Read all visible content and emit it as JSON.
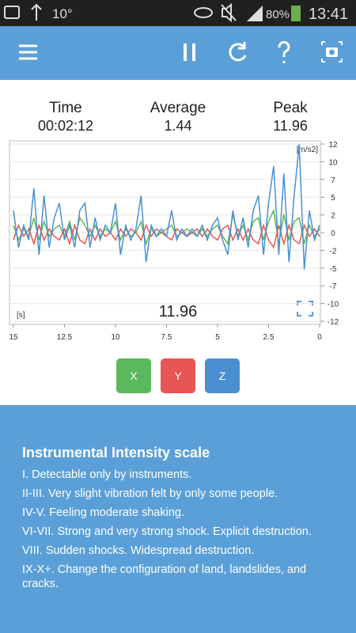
{
  "status_bar": {
    "temperature": "10°",
    "battery": "80%",
    "time": "13:41"
  },
  "stats": [
    {
      "label": "Time",
      "value": "00:02:12"
    },
    {
      "label": "Average",
      "value": 1.44
    },
    {
      "label": "Peak",
      "value": 11.96
    }
  ],
  "chart_data": {
    "type": "line",
    "y_unit": "[m/s2]",
    "x_unit": "[s]",
    "x": [
      15,
      14.75,
      14.5,
      14.25,
      14,
      13.75,
      13.5,
      13.25,
      13,
      12.75,
      12.5,
      12.25,
      12,
      11.75,
      11.5,
      11.25,
      11,
      10.75,
      10.5,
      10.25,
      10,
      9.75,
      9.5,
      9.25,
      9,
      8.75,
      8.5,
      8.25,
      8,
      7.75,
      7.5,
      7.25,
      7,
      6.75,
      6.5,
      6.25,
      6,
      5.75,
      5.5,
      5.25,
      5,
      4.75,
      4.5,
      4.25,
      4,
      3.75,
      3.5,
      3.25,
      3,
      2.75,
      2.5,
      2.25,
      2,
      1.75,
      1.5,
      1.25,
      1,
      0.75,
      0.5,
      0.25,
      0
    ],
    "series": [
      {
        "name": "X",
        "color": "#5cb85c",
        "values": [
          1,
          -1,
          0.5,
          -0.5,
          2,
          -1,
          1.5,
          -0.5,
          0.5,
          1,
          -0.5,
          1.5,
          -1,
          2,
          1,
          -0.5,
          1,
          -0.5,
          0.5,
          0,
          1.5,
          -1,
          0.5,
          -0.5,
          0,
          1.5,
          -1.5,
          0.5,
          -0.5,
          0,
          0.5,
          1,
          -0.5,
          0,
          0.5,
          0,
          -0.5,
          0.5,
          -0.5,
          0.5,
          1,
          -0.5,
          -1.5,
          2.5,
          -0.5,
          1,
          -1,
          1.5,
          2,
          -1,
          1.5,
          3,
          -1.5,
          2.5,
          -1,
          1.5,
          2,
          -1.5,
          1,
          -0.5,
          0.5
        ]
      },
      {
        "name": "Y",
        "color": "#e85555",
        "values": [
          -1,
          1,
          -0.5,
          0.5,
          -1.5,
          1,
          -1,
          0.5,
          -0.5,
          -1,
          0.5,
          -1.5,
          1,
          -1,
          -1.5,
          0.5,
          -1,
          0.5,
          -0.5,
          0,
          -1,
          0.5,
          -0.5,
          0.5,
          0,
          -1,
          1,
          -0.5,
          0.5,
          0,
          -0.5,
          -1,
          0.5,
          0,
          -0.5,
          0,
          0.5,
          -0.5,
          0.5,
          -0.5,
          -1,
          0.5,
          1,
          -1,
          0.5,
          -1,
          0.5,
          -1,
          -1.5,
          1,
          -1,
          -2,
          1,
          -1.5,
          1,
          -1,
          -1.5,
          1,
          -0.5,
          0.5,
          -0.5
        ]
      },
      {
        "name": "Z",
        "color": "#4a90d0",
        "values": [
          3,
          -2,
          1,
          -1,
          6,
          -3,
          5,
          -2,
          2,
          4,
          -1,
          1,
          -2,
          3,
          4,
          -2,
          2,
          -1,
          1,
          0,
          4,
          -3,
          1,
          -1,
          0.5,
          5,
          -4,
          1,
          -0.5,
          0.5,
          -0.5,
          3,
          -1,
          0.5,
          -0.5,
          0.5,
          -0.5,
          1,
          -1,
          1,
          2,
          -1,
          -3,
          3,
          -1,
          2,
          -2,
          3,
          5,
          -3,
          4,
          9,
          -3,
          8,
          -4,
          5,
          11.96,
          -5,
          3,
          -1,
          1
        ]
      }
    ],
    "xlim": [
      15,
      0
    ],
    "ylim": [
      -12,
      12
    ],
    "xticks": [
      15,
      12.5,
      10,
      7.5,
      5,
      2.5,
      0
    ],
    "yticks": [
      {
        "value": -12,
        "label": "-12"
      },
      {
        "value": -9.6,
        "label": "-10"
      },
      {
        "value": -7.2,
        "label": "-7"
      },
      {
        "value": -4.8,
        "label": "-5"
      },
      {
        "value": -2.4,
        "label": "-2"
      },
      0,
      {
        "value": 2.4,
        "label": "2"
      },
      {
        "value": 4.8,
        "label": "5"
      },
      {
        "value": 7.2,
        "label": "7"
      },
      {
        "value": 9.6,
        "label": "10"
      },
      12
    ],
    "grid": true
  },
  "info": {
    "title": "Instrumental Intensity scale",
    "items": [
      "I. Detectable only by instruments.",
      "II-III. Very slight vibration felt by only some people.",
      "IV-V. Feeling moderate shaking.",
      "VI-VII. Strong and very strong shock. Explicit destruction.",
      "VIII. Sudden shocks. Widespread destruction.",
      "IX-X+. Change the configuration of land, landslides, and cracks."
    ]
  }
}
